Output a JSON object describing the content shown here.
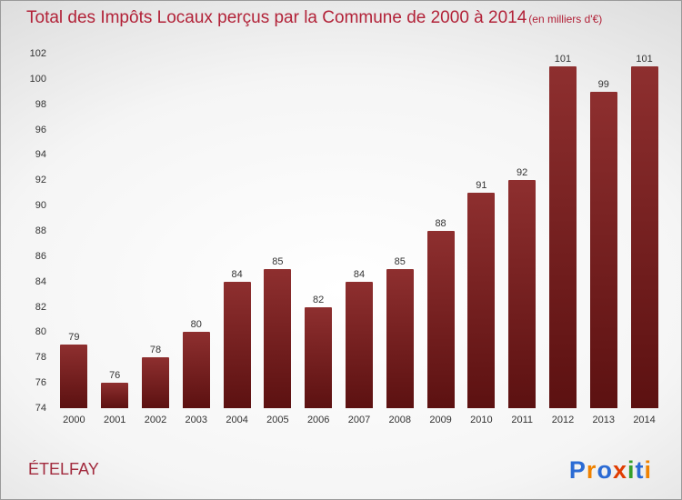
{
  "header": {
    "title": "Total des Impôts Locaux perçus par la Commune de 2000 à 2014",
    "subtitle": "(en milliers d'€)"
  },
  "chart_data": {
    "type": "bar",
    "title": "Total des Impôts Locaux perçus par la Commune de 2000 à 2014 (en milliers d'€)",
    "categories": [
      "2000",
      "2001",
      "2002",
      "2003",
      "2004",
      "2005",
      "2006",
      "2007",
      "2008",
      "2009",
      "2010",
      "2011",
      "2012",
      "2013",
      "2014"
    ],
    "values": [
      79,
      76,
      78,
      80,
      84,
      85,
      82,
      84,
      85,
      88,
      91,
      92,
      101,
      99,
      101
    ],
    "xlabel": "",
    "ylabel": "",
    "ylim": [
      74,
      102
    ],
    "ytick_step": 2,
    "grid": false,
    "legend": "none",
    "bar_color_top": "#8e2f2f",
    "bar_color_bottom": "#5c1111",
    "value_label_color": "#333333",
    "tick_label_color": "#333333"
  },
  "footer": {
    "commune": "ÉTELFAY",
    "logo_letters": [
      {
        "ch": "P",
        "color": "#2b6bd4"
      },
      {
        "ch": "r",
        "color": "#f08200"
      },
      {
        "ch": "o",
        "color": "#2b6bd4"
      },
      {
        "ch": "x",
        "color": "#e03c00"
      },
      {
        "ch": "i",
        "color": "#35a02a"
      },
      {
        "ch": "t",
        "color": "#2b6bd4"
      },
      {
        "ch": "i",
        "color": "#f08200"
      }
    ]
  },
  "colors": {
    "title": "#b22238",
    "commune": "#a22b3e",
    "page_border": "#9a9a9a"
  }
}
